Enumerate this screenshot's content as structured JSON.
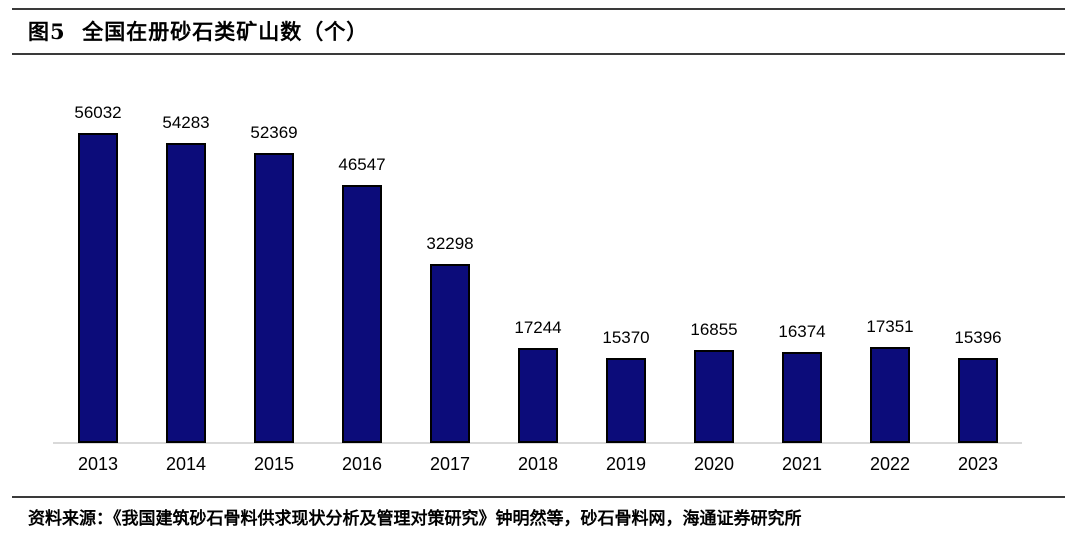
{
  "figure": {
    "title": "图5  全国在册砂石类矿山数（个）",
    "source": "资料来源：《我国建筑砂石骨料供求现状分析及管理对策研究》钟明然等，砂石骨料网，海通证券研究所"
  },
  "colors": {
    "bar_fill": "#0c0c7a",
    "bar_border": "#000000",
    "axis_line": "#d9d9d9",
    "rule": "#3a3a3a",
    "text": "#000000"
  },
  "chart_data": {
    "type": "bar",
    "title": "全国在册砂石类矿山数（个）",
    "categories": [
      "2013",
      "2014",
      "2015",
      "2016",
      "2017",
      "2018",
      "2019",
      "2020",
      "2021",
      "2022",
      "2023"
    ],
    "values": [
      56032,
      54283,
      52369,
      46547,
      32298,
      17244,
      15370,
      16855,
      16374,
      17351,
      15396
    ],
    "xlabel": "",
    "ylabel": "",
    "ylim": [
      0,
      60000
    ],
    "grid": false,
    "legend": false,
    "data_labels": true,
    "y_axis_visible": false
  }
}
